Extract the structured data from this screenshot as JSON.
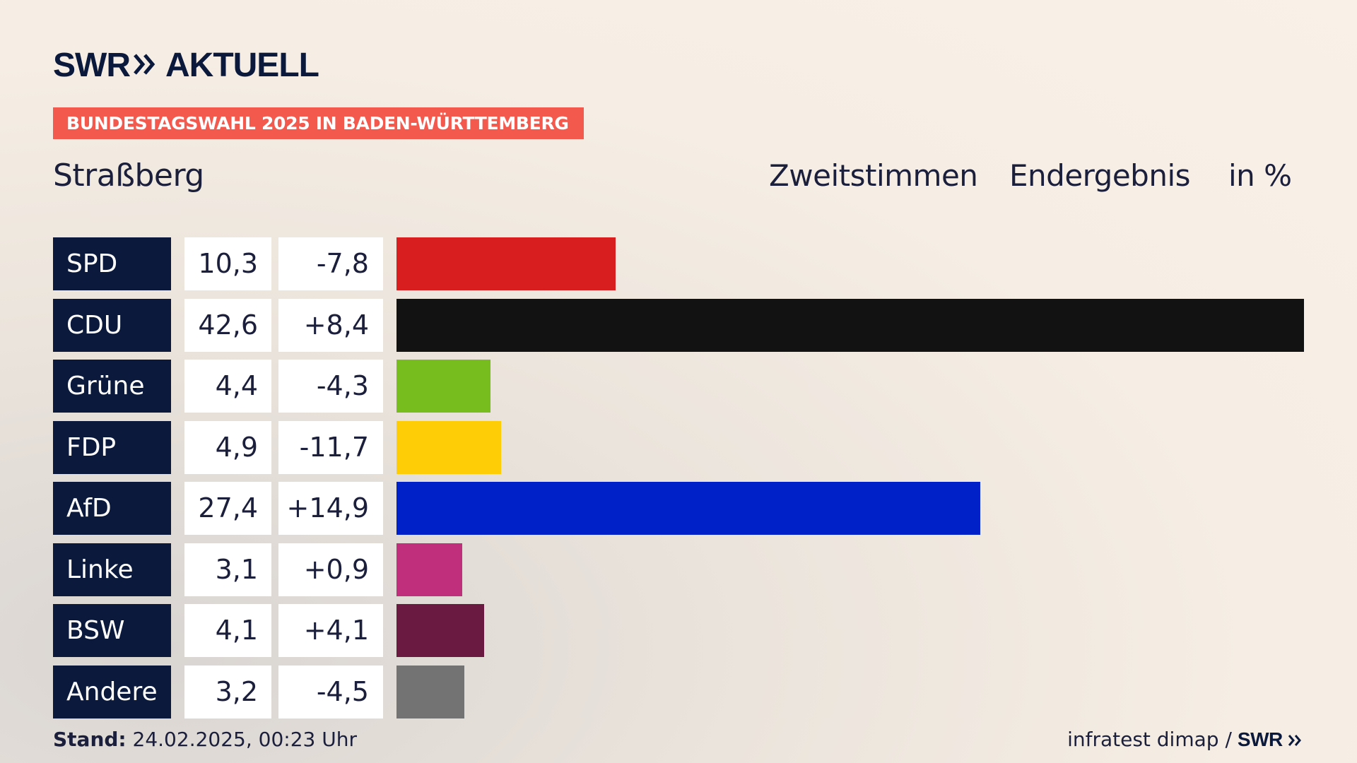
{
  "brand": {
    "logo_text": "SWR",
    "logo_suffix": "AKTUELL"
  },
  "banner": "BUNDESTAGSWAHL 2025 IN BADEN-WÜRTTEMBERG",
  "place": "Straßberg",
  "headers": {
    "vote_type": "Zweitstimmen",
    "status": "Endergebnis",
    "unit": "in %"
  },
  "chart_data": {
    "type": "bar",
    "orientation": "horizontal",
    "categories": [
      "SPD",
      "CDU",
      "Grüne",
      "FDP",
      "AfD",
      "Linke",
      "BSW",
      "Andere"
    ],
    "values": [
      10.3,
      42.6,
      4.4,
      4.9,
      27.4,
      3.1,
      4.1,
      3.2
    ],
    "value_labels": [
      "10,3",
      "42,6",
      "4,4",
      "4,9",
      "27,4",
      "3,1",
      "4,1",
      "3,2"
    ],
    "change_labels": [
      "-7,8",
      "+8,4",
      "-4,3",
      "-11,7",
      "+14,9",
      "+0,9",
      "+4,1",
      "-4,5"
    ],
    "changes": [
      -7.8,
      8.4,
      -4.3,
      -11.7,
      14.9,
      0.9,
      4.1,
      -4.5
    ],
    "colors": [
      "#d81e1f",
      "#121212",
      "#78bd1e",
      "#ffcd05",
      "#0021c8",
      "#bf2f7b",
      "#6a1a40",
      "#737373"
    ],
    "xlim": [
      0,
      42.6
    ],
    "grid": false,
    "legend": "none"
  },
  "footer": {
    "stand_label": "Stand:",
    "stand_value": "24.02.2025, 00:23 Uhr",
    "source": "infratest dimap /",
    "source_logo": "SWR"
  }
}
